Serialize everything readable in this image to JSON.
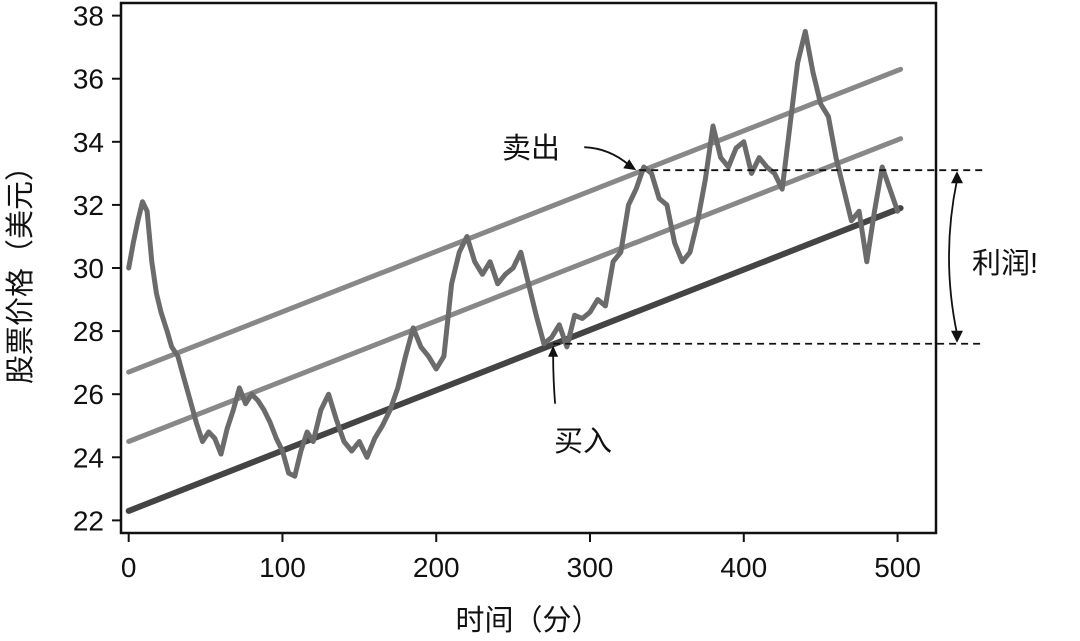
{
  "chart_data": {
    "type": "line",
    "xlabel": "时间（分）",
    "ylabel": "股票价格（美元）",
    "xlim": [
      -5,
      525
    ],
    "ylim": [
      21.6,
      38.4
    ],
    "x_ticks": [
      0,
      100,
      200,
      300,
      400,
      500
    ],
    "y_ticks": [
      22,
      24,
      26,
      28,
      30,
      32,
      34,
      36,
      38
    ],
    "grid": false,
    "colors": {
      "price": "#6b6b6b",
      "upper_channel": "#888888",
      "mid_channel": "#888888",
      "support": "#444444",
      "annotation": "#111111"
    },
    "series": [
      {
        "id": "price",
        "x": [
          0,
          3,
          6,
          9,
          12,
          15,
          18,
          21,
          25,
          28,
          32,
          36,
          40,
          44,
          48,
          52,
          56,
          60,
          64,
          68,
          72,
          76,
          80,
          84,
          88,
          92,
          96,
          100,
          104,
          108,
          112,
          116,
          120,
          125,
          130,
          135,
          140,
          145,
          150,
          155,
          160,
          165,
          170,
          175,
          180,
          185,
          190,
          195,
          200,
          205,
          210,
          215,
          220,
          225,
          230,
          235,
          240,
          245,
          250,
          255,
          260,
          265,
          270,
          275,
          280,
          285,
          290,
          295,
          300,
          305,
          310,
          315,
          320,
          325,
          330,
          335,
          340,
          345,
          350,
          355,
          360,
          365,
          370,
          375,
          380,
          385,
          390,
          395,
          400,
          405,
          410,
          415,
          420,
          425,
          430,
          435,
          440,
          445,
          450,
          455,
          460,
          465,
          470,
          475,
          480,
          485,
          490,
          495,
          500
        ],
        "values": [
          30.0,
          30.8,
          31.5,
          32.1,
          31.8,
          30.2,
          29.2,
          28.6,
          28.0,
          27.5,
          27.2,
          26.5,
          25.8,
          25.1,
          24.5,
          24.8,
          24.6,
          24.1,
          24.9,
          25.5,
          26.2,
          25.7,
          26.0,
          25.8,
          25.5,
          25.1,
          24.6,
          24.2,
          23.5,
          23.4,
          24.2,
          24.8,
          24.5,
          25.5,
          26.0,
          25.2,
          24.5,
          24.2,
          24.5,
          24.0,
          24.6,
          25.0,
          25.5,
          26.2,
          27.2,
          28.1,
          27.5,
          27.2,
          26.8,
          27.2,
          29.5,
          30.5,
          31.0,
          30.2,
          29.8,
          30.2,
          29.5,
          29.8,
          30.0,
          30.5,
          29.5,
          28.5,
          27.6,
          27.8,
          28.2,
          27.5,
          28.5,
          28.4,
          28.6,
          29.0,
          28.8,
          30.2,
          30.5,
          32.0,
          32.5,
          33.2,
          33.0,
          32.2,
          32.0,
          30.8,
          30.2,
          30.5,
          31.5,
          32.8,
          34.5,
          33.5,
          33.2,
          33.8,
          34.0,
          33.0,
          33.5,
          33.2,
          33.0,
          32.5,
          34.5,
          36.5,
          37.5,
          36.2,
          35.2,
          34.8,
          33.5,
          32.5,
          31.5,
          31.8,
          30.2,
          31.8,
          33.2,
          32.5,
          31.8
        ]
      },
      {
        "id": "upper_channel",
        "x": [
          0,
          502
        ],
        "values": [
          26.7,
          36.3
        ]
      },
      {
        "id": "mid_channel",
        "x": [
          0,
          502
        ],
        "values": [
          24.5,
          34.1
        ]
      },
      {
        "id": "support",
        "x": [
          0,
          502
        ],
        "values": [
          22.3,
          31.9
        ]
      }
    ],
    "annotations": {
      "sell": {
        "label": "卖出",
        "x": 332,
        "y": 33.1
      },
      "buy": {
        "label": "买入",
        "x": 276,
        "y": 27.6
      },
      "profit": {
        "label": "利润!",
        "y_top": 33.1,
        "y_bottom": 27.6
      }
    }
  }
}
